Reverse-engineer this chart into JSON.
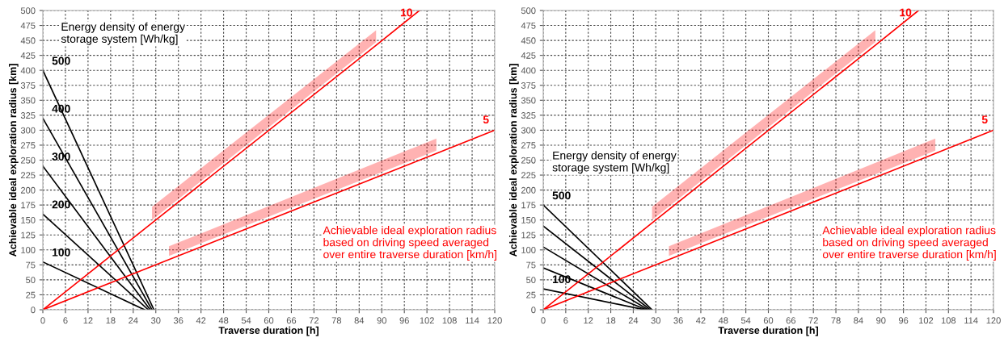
{
  "chart_data": [
    {
      "type": "line",
      "xlabel": "Traverse duration [h]",
      "ylabel": "Achievable ideal exploration radius [km]",
      "xlim": [
        0,
        120
      ],
      "ylim": [
        0,
        500
      ],
      "xticks": [
        0,
        6,
        12,
        18,
        24,
        30,
        36,
        42,
        48,
        54,
        60,
        66,
        72,
        78,
        84,
        90,
        96,
        102,
        108,
        114,
        120
      ],
      "yticks": [
        0,
        25,
        50,
        75,
        100,
        125,
        150,
        175,
        200,
        225,
        250,
        275,
        300,
        325,
        350,
        375,
        400,
        425,
        450,
        475,
        500
      ],
      "grid": true,
      "line_style": "solid",
      "series": [
        {
          "name": "100",
          "color": "#000000",
          "x": [
            0,
            27
          ],
          "values": [
            80,
            0
          ]
        },
        {
          "name": "200",
          "color": "#000000",
          "x": [
            0,
            28
          ],
          "values": [
            160,
            0
          ]
        },
        {
          "name": "300",
          "color": "#000000",
          "x": [
            0,
            28.5
          ],
          "values": [
            240,
            0
          ]
        },
        {
          "name": "400",
          "color": "#000000",
          "x": [
            0,
            29
          ],
          "values": [
            320,
            0
          ]
        },
        {
          "name": "500",
          "color": "#000000",
          "x": [
            0,
            29.5
          ],
          "values": [
            400,
            0
          ]
        },
        {
          "name": "10",
          "color": "#ff0000",
          "x": [
            0,
            29,
            88.5,
            100
          ],
          "values": [
            0,
            145,
            442,
            500
          ],
          "lower": [
            null,
            150,
            447,
            null
          ],
          "upper": [
            null,
            172,
            467,
            null
          ]
        },
        {
          "name": "5",
          "color": "#ff0000",
          "x": [
            0,
            33.5,
            104.5,
            120
          ],
          "values": [
            0,
            84,
            261,
            300
          ],
          "lower": [
            null,
            90,
            266,
            null
          ],
          "upper": [
            null,
            106,
            286,
            null
          ]
        }
      ],
      "annotations": [
        "Energy density of energy\nstorage system [Wh/kg]",
        "Achievable ideal exploration radius\nbased on driving speed averaged\nover entire traverse duration [km/h]"
      ]
    },
    {
      "type": "line",
      "xlabel": "Traverse duration [h]",
      "ylabel": "Achievable ideal exploration radius [km]",
      "xlim": [
        0,
        120
      ],
      "ylim": [
        0,
        500
      ],
      "xticks": [
        0,
        6,
        12,
        18,
        24,
        30,
        36,
        42,
        48,
        54,
        60,
        66,
        72,
        78,
        84,
        90,
        96,
        102,
        108,
        114,
        120
      ],
      "yticks": [
        0,
        25,
        50,
        75,
        100,
        125,
        150,
        175,
        200,
        225,
        250,
        275,
        300,
        325,
        350,
        375,
        400,
        425,
        450,
        475,
        500
      ],
      "grid": true,
      "line_style": "solid",
      "series": [
        {
          "name": "100",
          "color": "#000000",
          "x": [
            0,
            27
          ],
          "values": [
            35,
            0
          ]
        },
        {
          "color": "#000000",
          "x": [
            0,
            27.5
          ],
          "values": [
            70,
            0
          ]
        },
        {
          "color": "#000000",
          "x": [
            0,
            28
          ],
          "values": [
            105,
            0
          ]
        },
        {
          "color": "#000000",
          "x": [
            0,
            28.5
          ],
          "values": [
            140,
            0
          ]
        },
        {
          "name": "500",
          "color": "#000000",
          "x": [
            0,
            29
          ],
          "values": [
            175,
            0
          ]
        },
        {
          "name": "10",
          "color": "#ff0000",
          "x": [
            0,
            29,
            88.5,
            100
          ],
          "values": [
            0,
            145,
            442,
            500
          ],
          "lower": [
            null,
            150,
            447,
            null
          ],
          "upper": [
            null,
            172,
            467,
            null
          ]
        },
        {
          "name": "5",
          "color": "#ff0000",
          "x": [
            0,
            33.5,
            104.5,
            120
          ],
          "values": [
            0,
            84,
            261,
            300
          ],
          "lower": [
            null,
            90,
            266,
            null
          ],
          "upper": [
            null,
            106,
            286,
            null
          ]
        }
      ],
      "annotations": [
        "Energy density of energy\nstorage system [Wh/kg]",
        "Achievable ideal exploration radius\nbased on driving speed averaged\nover entire traverse duration [km/h]"
      ]
    }
  ]
}
